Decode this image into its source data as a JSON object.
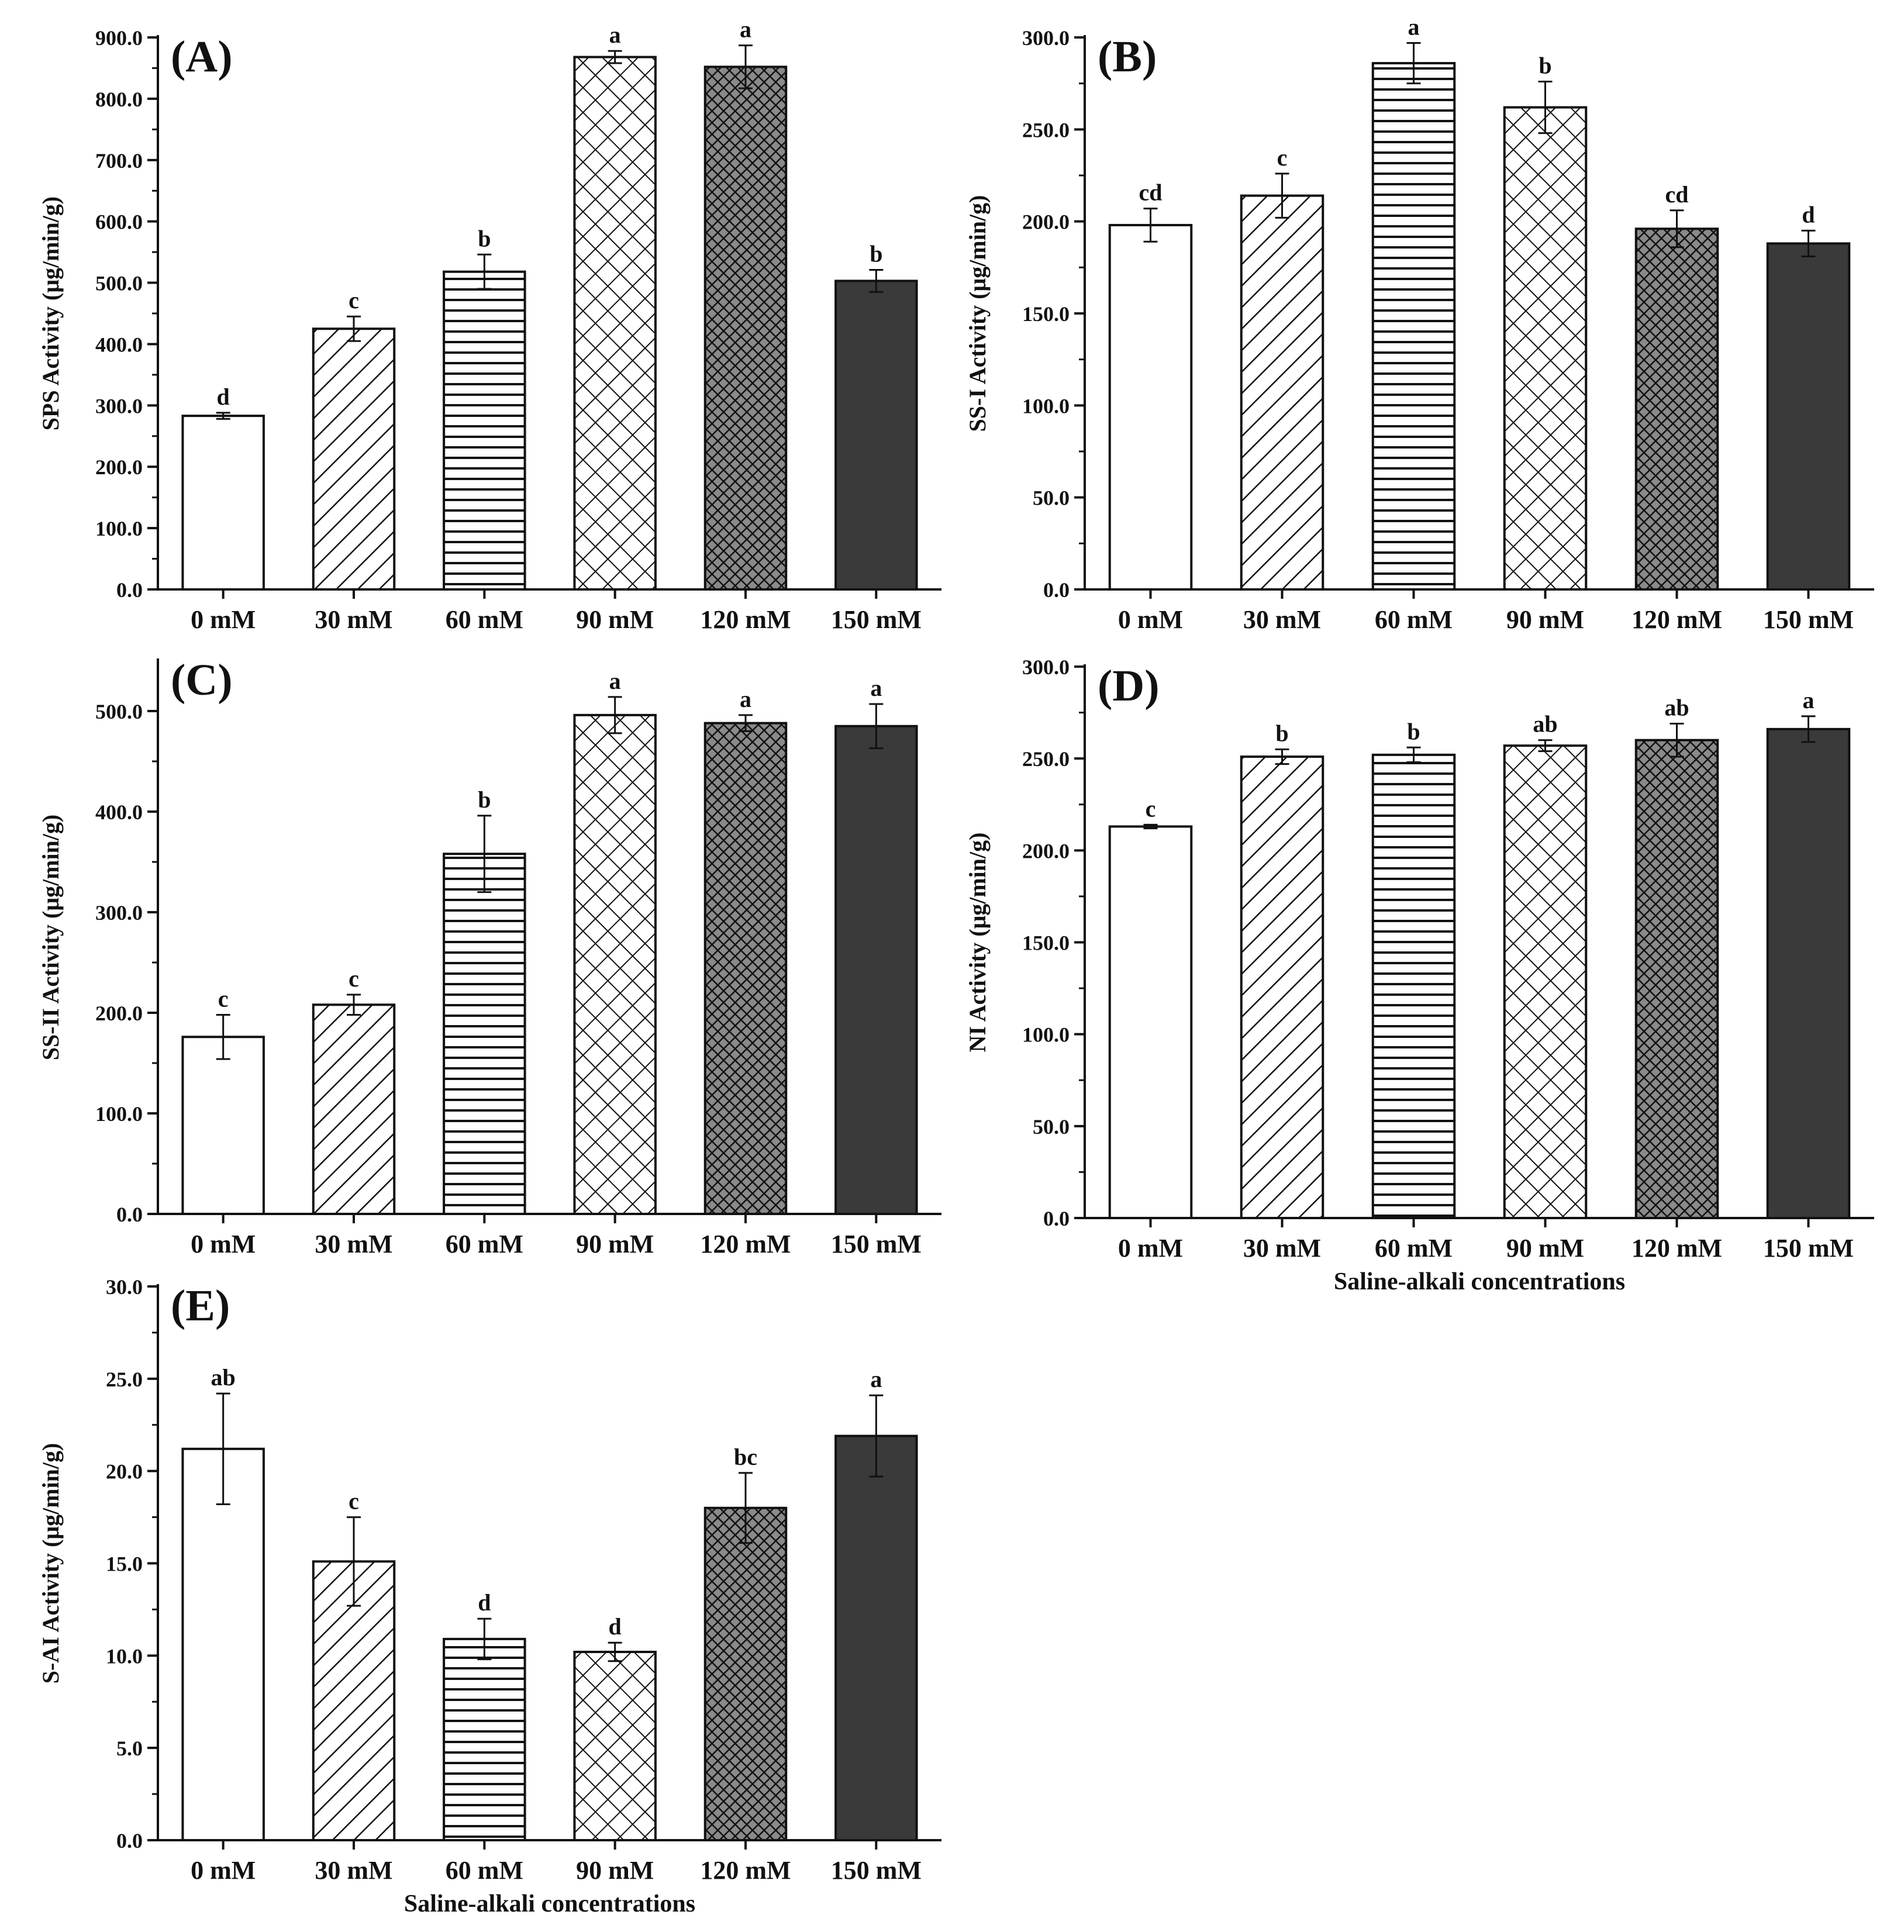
{
  "colors": {
    "ink": "#111111",
    "bar_fill": "#ffffff",
    "solid_fill": "#3a3a3a"
  },
  "patterns": [
    "none",
    "diag",
    "hlines",
    "crosshatch",
    "fine-grid",
    "solid"
  ],
  "chart_data": [
    {
      "type": "bar",
      "panel_label": "(A)",
      "ylabel": "SPS Activity (μg/min/g)",
      "xlabel": "",
      "categories": [
        "0 mM",
        "30 mM",
        "60 mM",
        "90 mM",
        "120 mM",
        "150 mM"
      ],
      "values": [
        283,
        425,
        518,
        868,
        852,
        503
      ],
      "errors": [
        5,
        20,
        28,
        10,
        35,
        18
      ],
      "letters": [
        "d",
        "c",
        "b",
        "a",
        "a",
        "b"
      ],
      "ylim": [
        0,
        900
      ],
      "ticks": [
        "0.0",
        "100.0",
        "200.0",
        "300.0",
        "400.0",
        "500.0",
        "600.0",
        "700.0",
        "800.0",
        "900.0"
      ]
    },
    {
      "type": "bar",
      "panel_label": "(B)",
      "ylabel": "SS-I Activity (μg/min/g)",
      "xlabel": "",
      "categories": [
        "0 mM",
        "30 mM",
        "60 mM",
        "90 mM",
        "120 mM",
        "150 mM"
      ],
      "values": [
        198,
        214,
        286,
        262,
        196,
        188
      ],
      "errors": [
        9,
        12,
        11,
        14,
        10,
        7
      ],
      "letters": [
        "cd",
        "c",
        "a",
        "b",
        "cd",
        "d"
      ],
      "ylim": [
        0,
        300
      ],
      "ticks": [
        "0.0",
        "50.0",
        "100.0",
        "150.0",
        "200.0",
        "250.0",
        "300.0"
      ]
    },
    {
      "type": "bar",
      "panel_label": "(C)",
      "ylabel": "SS-II Activity (μg/min/g)",
      "xlabel": "",
      "categories": [
        "0 mM",
        "30 mM",
        "60 mM",
        "90 mM",
        "120 mM",
        "150 mM"
      ],
      "values": [
        176,
        208,
        358,
        496,
        488,
        485
      ],
      "errors": [
        22,
        10,
        38,
        18,
        8,
        22
      ],
      "letters": [
        "c",
        "c",
        "b",
        "a",
        "a",
        "a"
      ],
      "ylim": [
        0,
        550
      ],
      "ticks": [
        "0.0",
        "100.0",
        "200.0",
        "300.0",
        "400.0",
        "500.0"
      ]
    },
    {
      "type": "bar",
      "panel_label": "(D)",
      "ylabel": "NI Activity (μg/min/g)",
      "xlabel": "Saline-alkali concentrations",
      "categories": [
        "0 mM",
        "30 mM",
        "60 mM",
        "90 mM",
        "120 mM",
        "150 mM"
      ],
      "values": [
        213,
        251,
        252,
        257,
        260,
        266
      ],
      "errors": [
        1,
        4,
        4,
        3,
        9,
        7
      ],
      "letters": [
        "c",
        "b",
        "b",
        "ab",
        "ab",
        "a"
      ],
      "ylim": [
        0,
        300
      ],
      "ticks": [
        "0.0",
        "50.0",
        "100.0",
        "150.0",
        "200.0",
        "250.0",
        "300.0"
      ]
    },
    {
      "type": "bar",
      "panel_label": "(E)",
      "ylabel": "S-AI Activity (μg/min/g)",
      "xlabel": "Saline-alkali concentrations",
      "categories": [
        "0 mM",
        "30 mM",
        "60 mM",
        "90 mM",
        "120 mM",
        "150 mM"
      ],
      "values": [
        21.2,
        15.1,
        10.9,
        10.2,
        18.0,
        21.9
      ],
      "errors": [
        3.0,
        2.4,
        1.1,
        0.5,
        1.9,
        2.2
      ],
      "letters": [
        "ab",
        "c",
        "d",
        "d",
        "bc",
        "a"
      ],
      "ylim": [
        0,
        30
      ],
      "ticks": [
        "0.0",
        "5.0",
        "10.0",
        "15.0",
        "20.0",
        "25.0",
        "30.0"
      ]
    }
  ]
}
